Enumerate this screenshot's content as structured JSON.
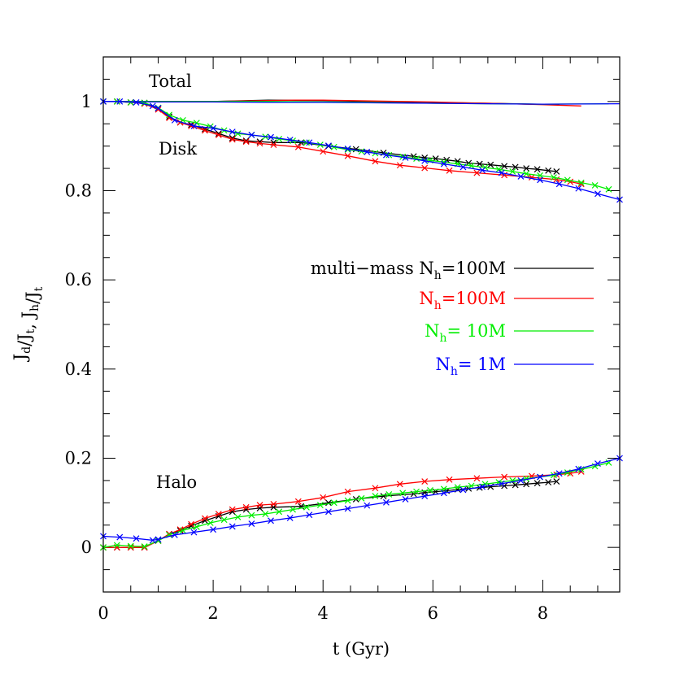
{
  "chart_data": {
    "type": "line",
    "xlabel": "t (Gyr)",
    "ylabel": "J_d/J_t, J_h/J_t",
    "xlim": [
      0,
      9.4
    ],
    "ylim": [
      -0.1,
      1.1
    ],
    "x_ticks": [
      "0",
      "2",
      "4",
      "6",
      "8"
    ],
    "y_ticks": [
      "0",
      "0.2",
      "0.4",
      "0.6",
      "0.8",
      "1"
    ],
    "annotations": {
      "total": "Total",
      "disk": "Disk",
      "halo": "Halo"
    },
    "legend_position": "center-right",
    "series": [
      {
        "name": "multi-mass N_h=100M",
        "label_prefix": "multi−mass N",
        "label_sub": "h",
        "label_suffix": "=100M",
        "color": "#000000",
        "total": {
          "x": [
            0,
            1,
            2,
            3,
            4,
            5,
            6,
            7,
            8.3
          ],
          "y": [
            1.0,
            1.0,
            1.0,
            1.003,
            1.002,
            1.0,
            0.998,
            0.996,
            0.993
          ]
        },
        "disk": {
          "x": [
            0,
            0.25,
            0.5,
            0.75,
            1.0,
            1.2,
            1.4,
            1.6,
            1.85,
            2.1,
            2.35,
            2.6,
            2.85,
            3.1,
            3.6,
            4.1,
            4.6,
            5.1,
            5.65,
            5.85,
            6.05,
            6.25,
            6.45,
            6.65,
            6.85,
            7.05,
            7.3,
            7.5,
            7.7,
            7.9,
            8.1,
            8.25
          ],
          "y": [
            1.0,
            1.0,
            0.998,
            0.997,
            0.985,
            0.966,
            0.953,
            0.948,
            0.938,
            0.928,
            0.918,
            0.912,
            0.91,
            0.908,
            0.908,
            0.9,
            0.893,
            0.885,
            0.877,
            0.874,
            0.872,
            0.869,
            0.866,
            0.862,
            0.86,
            0.858,
            0.855,
            0.853,
            0.85,
            0.848,
            0.845,
            0.843
          ]
        },
        "halo": {
          "x": [
            0,
            0.25,
            0.5,
            0.75,
            1.0,
            1.2,
            1.4,
            1.6,
            1.85,
            2.1,
            2.35,
            2.6,
            2.85,
            3.1,
            3.6,
            4.1,
            4.6,
            5.1,
            5.65,
            5.85,
            6.05,
            6.25,
            6.45,
            6.65,
            6.85,
            7.05,
            7.3,
            7.5,
            7.7,
            7.9,
            8.1,
            8.25
          ],
          "y": [
            0.0,
            0.0,
            0.0,
            0.0,
            0.015,
            0.03,
            0.038,
            0.048,
            0.06,
            0.07,
            0.08,
            0.085,
            0.088,
            0.09,
            0.092,
            0.1,
            0.108,
            0.115,
            0.12,
            0.123,
            0.125,
            0.127,
            0.13,
            0.132,
            0.134,
            0.136,
            0.138,
            0.14,
            0.142,
            0.144,
            0.146,
            0.148
          ]
        }
      },
      {
        "name": "N_h=100M",
        "label_prefix": "N",
        "label_sub": "h",
        "label_suffix": "=100M",
        "color": "#ff0000",
        "total": {
          "x": [
            0,
            1,
            2,
            3,
            3.5,
            4,
            5,
            6,
            7,
            8,
            8.7
          ],
          "y": [
            1.0,
            1.0,
            1.0,
            1.002,
            1.003,
            1.003,
            1.001,
            0.999,
            0.996,
            0.993,
            0.99
          ]
        },
        "disk": {
          "x": [
            0,
            0.25,
            0.5,
            0.75,
            1.0,
            1.2,
            1.4,
            1.6,
            1.85,
            2.1,
            2.35,
            2.6,
            2.85,
            3.1,
            3.55,
            4.0,
            4.45,
            4.95,
            5.4,
            5.85,
            6.3,
            6.8,
            7.3,
            7.8,
            8.25,
            8.5,
            8.7
          ],
          "y": [
            1.0,
            1.0,
            0.998,
            0.995,
            0.982,
            0.963,
            0.953,
            0.945,
            0.935,
            0.925,
            0.915,
            0.91,
            0.906,
            0.903,
            0.898,
            0.888,
            0.878,
            0.866,
            0.857,
            0.851,
            0.845,
            0.84,
            0.835,
            0.83,
            0.825,
            0.82,
            0.815
          ]
        },
        "halo": {
          "x": [
            0,
            0.25,
            0.5,
            0.75,
            1.0,
            1.2,
            1.4,
            1.6,
            1.85,
            2.1,
            2.35,
            2.6,
            2.85,
            3.1,
            3.55,
            4.0,
            4.45,
            4.95,
            5.4,
            5.85,
            6.3,
            6.8,
            7.3,
            7.8,
            8.25,
            8.5,
            8.7
          ],
          "y": [
            0.0,
            0.0,
            0.0,
            0.0,
            0.015,
            0.03,
            0.04,
            0.052,
            0.065,
            0.075,
            0.085,
            0.09,
            0.095,
            0.097,
            0.103,
            0.112,
            0.125,
            0.133,
            0.142,
            0.148,
            0.152,
            0.155,
            0.158,
            0.16,
            0.163,
            0.166,
            0.17
          ]
        }
      },
      {
        "name": "N_h= 10M",
        "label_prefix": "N",
        "label_sub": "h",
        "label_suffix": "=  10M",
        "color": "#00ee00",
        "total": {
          "x": [
            0,
            1,
            2,
            3,
            4,
            5,
            6,
            7,
            8,
            9.2
          ],
          "y": [
            1.0,
            1.0,
            1.0,
            1.0,
            0.999,
            0.998,
            0.996,
            0.995,
            0.994,
            0.995
          ]
        },
        "disk": {
          "x": [
            0,
            0.25,
            0.5,
            0.75,
            1.0,
            1.2,
            1.45,
            1.7,
            1.95,
            2.2,
            2.45,
            2.7,
            2.95,
            3.2,
            3.45,
            3.7,
            3.95,
            4.2,
            4.45,
            4.7,
            4.95,
            5.2,
            5.45,
            5.7,
            5.95,
            6.2,
            6.45,
            6.7,
            6.95,
            7.2,
            7.45,
            7.7,
            7.95,
            8.2,
            8.45,
            8.7,
            8.95,
            9.2
          ],
          "y": [
            1.0,
            1.0,
            0.998,
            0.997,
            0.986,
            0.97,
            0.958,
            0.952,
            0.944,
            0.935,
            0.928,
            0.925,
            0.921,
            0.916,
            0.912,
            0.908,
            0.903,
            0.898,
            0.892,
            0.888,
            0.884,
            0.88,
            0.876,
            0.872,
            0.868,
            0.864,
            0.86,
            0.856,
            0.852,
            0.848,
            0.843,
            0.838,
            0.834,
            0.83,
            0.824,
            0.818,
            0.812,
            0.803
          ]
        },
        "halo": {
          "x": [
            0,
            0.25,
            0.5,
            0.75,
            1.0,
            1.2,
            1.45,
            1.7,
            1.95,
            2.2,
            2.45,
            2.7,
            2.95,
            3.2,
            3.45,
            3.7,
            3.95,
            4.2,
            4.45,
            4.7,
            4.95,
            5.2,
            5.45,
            5.7,
            5.95,
            6.2,
            6.45,
            6.7,
            6.95,
            7.2,
            7.45,
            7.7,
            7.95,
            8.2,
            8.45,
            8.7,
            8.95,
            9.2
          ],
          "y": [
            0.0,
            0.005,
            0.003,
            0.002,
            0.015,
            0.028,
            0.038,
            0.046,
            0.055,
            0.062,
            0.068,
            0.072,
            0.075,
            0.08,
            0.085,
            0.09,
            0.095,
            0.1,
            0.105,
            0.11,
            0.115,
            0.119,
            0.122,
            0.125,
            0.128,
            0.131,
            0.135,
            0.138,
            0.142,
            0.146,
            0.15,
            0.154,
            0.158,
            0.162,
            0.168,
            0.175,
            0.182,
            0.19
          ]
        }
      },
      {
        "name": "N_h=   1M",
        "label_prefix": "N",
        "label_sub": "h",
        "label_suffix": "=   1M",
        "color": "#0000ff",
        "total": {
          "x": [
            0,
            1,
            2,
            3,
            4,
            5,
            6,
            7,
            8,
            9.4
          ],
          "y": [
            1.0,
            0.999,
            0.999,
            0.998,
            0.998,
            0.997,
            0.996,
            0.995,
            0.994,
            0.995
          ]
        },
        "disk": {
          "x": [
            0,
            0.3,
            0.6,
            0.9,
            1.0,
            1.3,
            1.65,
            2.0,
            2.35,
            2.7,
            3.05,
            3.4,
            3.75,
            4.1,
            4.45,
            4.8,
            5.15,
            5.5,
            5.85,
            6.2,
            6.55,
            6.9,
            7.25,
            7.6,
            7.95,
            8.3,
            8.65,
            9.0,
            9.4
          ],
          "y": [
            1.0,
            1.0,
            0.998,
            0.99,
            0.985,
            0.958,
            0.945,
            0.94,
            0.932,
            0.925,
            0.92,
            0.914,
            0.908,
            0.901,
            0.894,
            0.887,
            0.88,
            0.874,
            0.867,
            0.86,
            0.853,
            0.846,
            0.84,
            0.832,
            0.824,
            0.815,
            0.805,
            0.793,
            0.78
          ]
        },
        "halo": {
          "x": [
            0,
            0.3,
            0.6,
            0.9,
            1.0,
            1.3,
            1.65,
            2.0,
            2.35,
            2.7,
            3.05,
            3.4,
            3.75,
            4.1,
            4.45,
            4.8,
            5.15,
            5.5,
            5.85,
            6.2,
            6.55,
            6.9,
            7.25,
            7.6,
            7.95,
            8.3,
            8.65,
            9.0,
            9.4
          ],
          "y": [
            0.025,
            0.023,
            0.02,
            0.016,
            0.018,
            0.028,
            0.034,
            0.04,
            0.047,
            0.053,
            0.06,
            0.066,
            0.073,
            0.08,
            0.087,
            0.094,
            0.101,
            0.108,
            0.115,
            0.122,
            0.129,
            0.136,
            0.143,
            0.15,
            0.158,
            0.166,
            0.176,
            0.188,
            0.2
          ]
        }
      }
    ]
  }
}
